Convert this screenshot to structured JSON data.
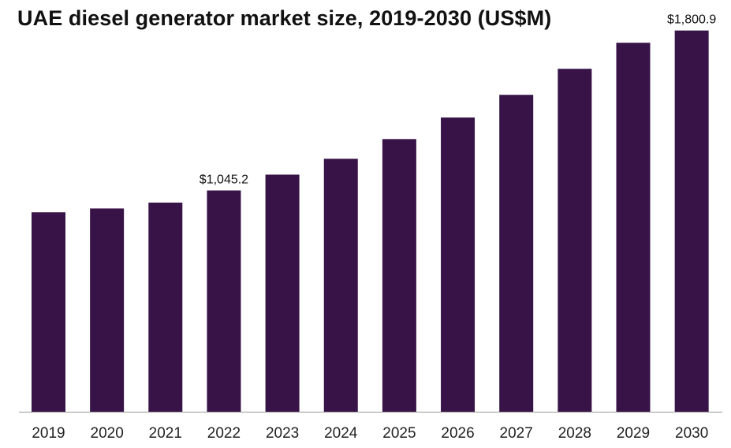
{
  "chart_data": {
    "type": "bar",
    "title": "UAE diesel generator market size, 2019-2030 (US$M)",
    "xlabel": "",
    "ylabel": "",
    "categories": [
      "2019",
      "2020",
      "2021",
      "2022",
      "2023",
      "2024",
      "2025",
      "2026",
      "2027",
      "2028",
      "2029",
      "2030"
    ],
    "values": [
      942.0,
      960.0,
      988.0,
      1045.2,
      1120.0,
      1195.0,
      1288.0,
      1390.0,
      1497.0,
      1620.0,
      1743.0,
      1800.9
    ],
    "data_labels": [
      {
        "category": "2022",
        "text": "$1,045.2"
      },
      {
        "category": "2030",
        "text": "$1,800.9"
      }
    ],
    "ylim": [
      0,
      1945
    ],
    "grid": false,
    "legend": "none",
    "bar_color": "#371347",
    "axis_color": "#999999"
  }
}
